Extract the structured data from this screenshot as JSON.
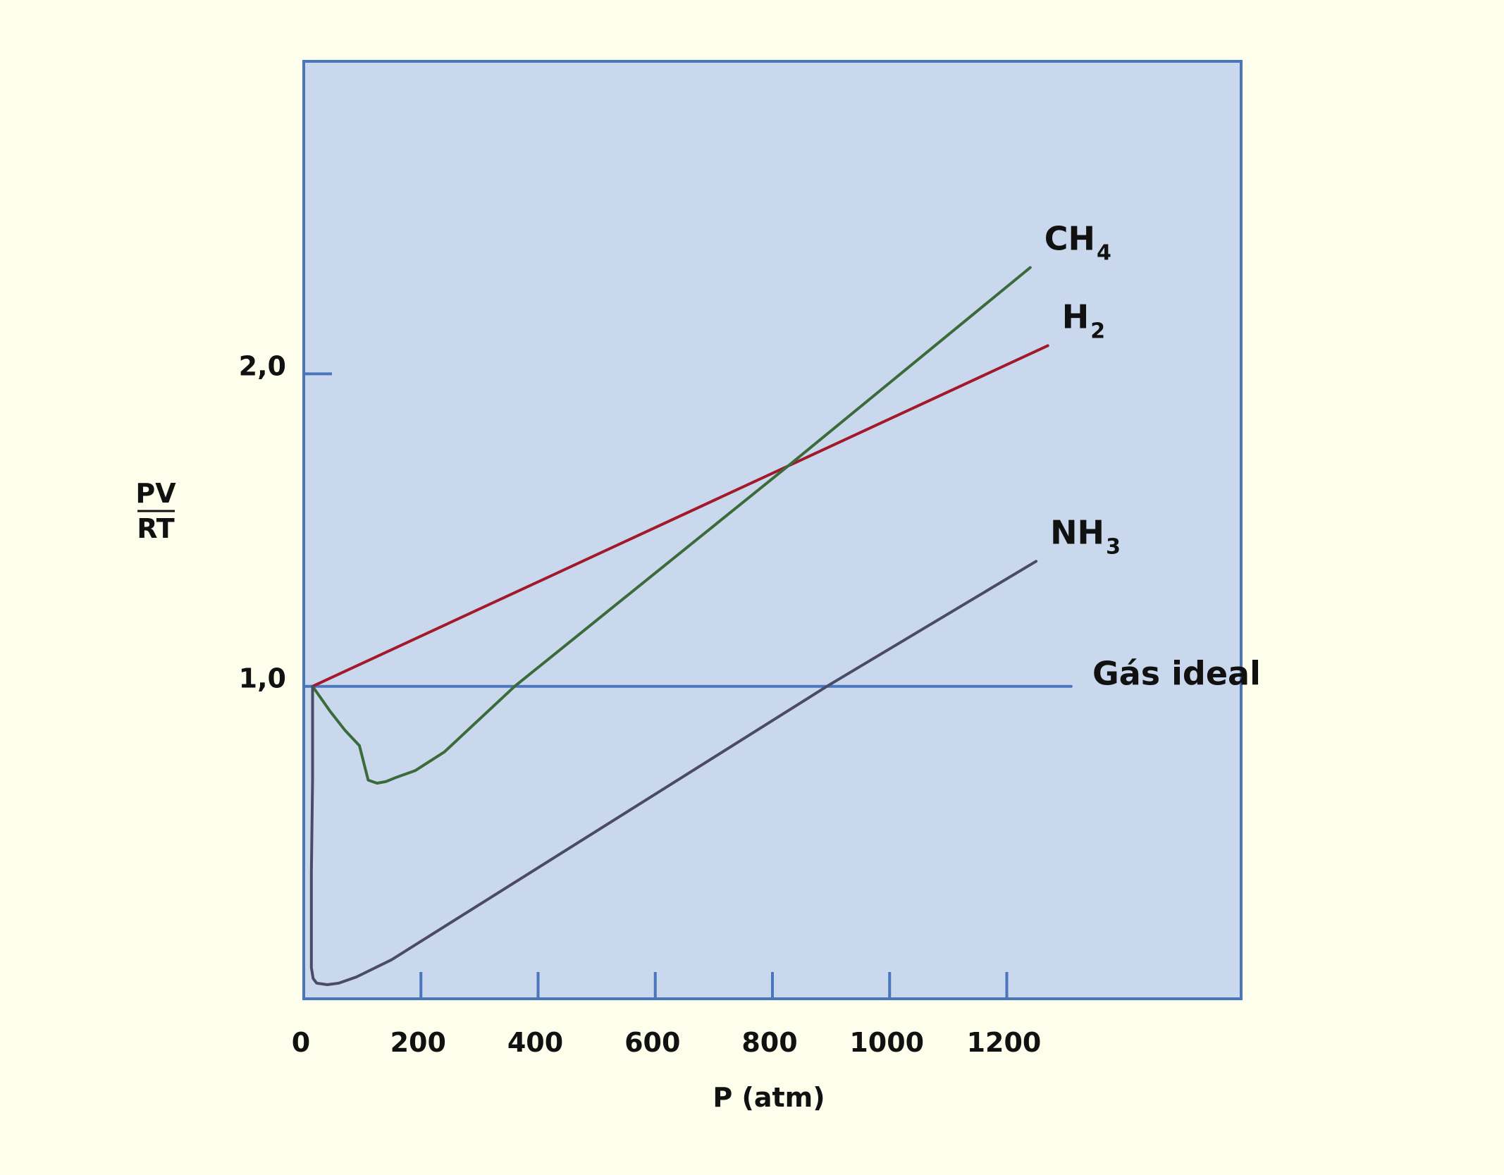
{
  "colors": {
    "page_background": "#fefeed",
    "plot_background": "#c9d8ec",
    "frame": "#4a76bd",
    "text": "#111111"
  },
  "chart_data": {
    "type": "line",
    "title": "",
    "xlabel": "P (atm)",
    "ylabel": {
      "numerator": "PV",
      "denominator": "RT"
    },
    "x_range": [
      0,
      1600
    ],
    "y_range": [
      0,
      3.0
    ],
    "x_ticks": [
      {
        "value": 0,
        "label": "0",
        "mark": false
      },
      {
        "value": 200,
        "label": "200",
        "mark": true
      },
      {
        "value": 400,
        "label": "400",
        "mark": true
      },
      {
        "value": 600,
        "label": "600",
        "mark": true
      },
      {
        "value": 800,
        "label": "800",
        "mark": true
      },
      {
        "value": 1000,
        "label": "1000",
        "mark": true
      },
      {
        "value": 1200,
        "label": "1200",
        "mark": true
      }
    ],
    "y_ticks": [
      {
        "value": 1.0,
        "label": "1,0",
        "mark": false
      },
      {
        "value": 2.0,
        "label": "2,0",
        "mark": true
      }
    ],
    "grid": false,
    "legend": "none (labels at line ends)",
    "series": [
      {
        "name": "Gás ideal",
        "label_main": "Gás ideal",
        "label_sub": "",
        "color": "#4a76bd",
        "points": [
          [
            0,
            1.0
          ],
          [
            1310,
            1.0
          ]
        ]
      },
      {
        "name": "H2",
        "label_main": "H",
        "label_sub": "2",
        "color": "#a3192b",
        "points": [
          [
            15,
            1.0
          ],
          [
            1270,
            2.09
          ]
        ]
      },
      {
        "name": "CH4",
        "label_main": "CH",
        "label_sub": "4",
        "color": "#3b6b3a",
        "points": [
          [
            15,
            1.0
          ],
          [
            45,
            0.92
          ],
          [
            70,
            0.86
          ],
          [
            95,
            0.81
          ],
          [
            110,
            0.7
          ],
          [
            125,
            0.69
          ],
          [
            140,
            0.695
          ],
          [
            160,
            0.71
          ],
          [
            190,
            0.73
          ],
          [
            240,
            0.79
          ],
          [
            360,
            1.0
          ],
          [
            830,
            1.71
          ],
          [
            1240,
            2.34
          ]
        ]
      },
      {
        "name": "NH3",
        "label_main": "NH",
        "label_sub": "3",
        "color": "#4b4b68",
        "points": [
          [
            15,
            1.0
          ],
          [
            15,
            0.7
          ],
          [
            13,
            0.4
          ],
          [
            13,
            0.2
          ],
          [
            13,
            0.1
          ],
          [
            16,
            0.065
          ],
          [
            22,
            0.05
          ],
          [
            40,
            0.045
          ],
          [
            60,
            0.05
          ],
          [
            90,
            0.07
          ],
          [
            150,
            0.125
          ],
          [
            893,
            1.0
          ],
          [
            1250,
            1.4
          ]
        ]
      }
    ]
  }
}
